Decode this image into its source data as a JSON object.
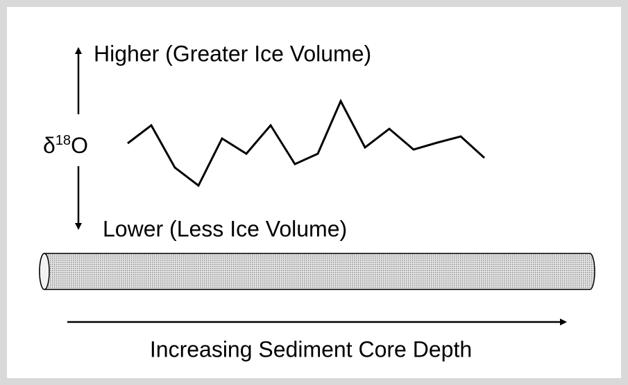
{
  "higher_label": "Higher (Greater Ice Volume)",
  "y_label": {
    "base": "δ",
    "sup": "18",
    "tail": "O"
  },
  "lower_label": "Lower (Less Ice Volume)",
  "x_label": "Increasing Sediment Core Depth"
}
